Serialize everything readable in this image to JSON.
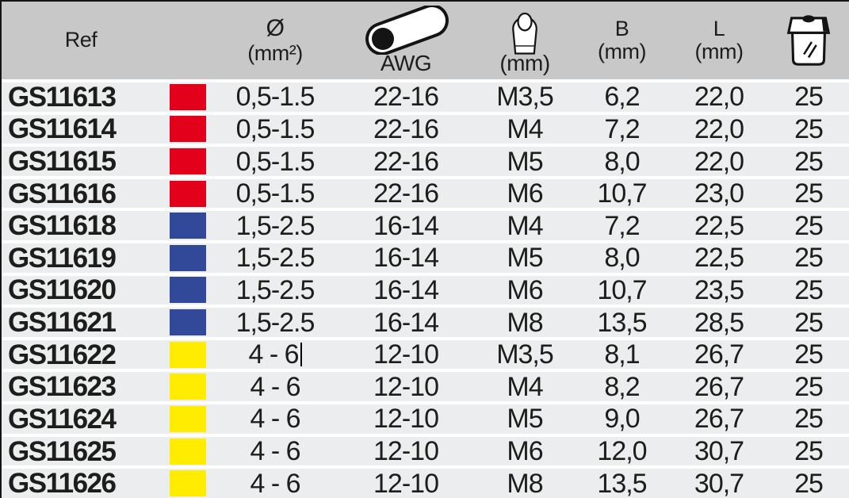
{
  "table": {
    "header": {
      "ref": "Ref",
      "diameter_symbol": "Ø",
      "diameter_unit": "(mm²)",
      "awg_label": "AWG",
      "ring_unit": "(mm)",
      "b_label": "B",
      "b_unit": "(mm)",
      "l_label": "L",
      "l_unit": "(mm)",
      "icons": {
        "awg": "cable-cross-section-icon",
        "ring": "ring-terminal-icon",
        "package": "packaging-box-icon"
      }
    },
    "rows": [
      {
        "ref": "GS11613",
        "color": "red",
        "diameter": "0,5-1.5",
        "awg": "22-16",
        "thread": "M3,5",
        "b": "6,2",
        "l": "22,0",
        "qty": "25"
      },
      {
        "ref": "GS11614",
        "color": "red",
        "diameter": "0,5-1.5",
        "awg": "22-16",
        "thread": "M4",
        "b": "7,2",
        "l": "22,0",
        "qty": "25"
      },
      {
        "ref": "GS11615",
        "color": "red",
        "diameter": "0,5-1.5",
        "awg": "22-16",
        "thread": "M5",
        "b": "8,0",
        "l": "22,0",
        "qty": "25"
      },
      {
        "ref": "GS11616",
        "color": "red",
        "diameter": "0,5-1.5",
        "awg": "22-16",
        "thread": "M6",
        "b": "10,7",
        "l": "23,0",
        "qty": "25"
      },
      {
        "ref": "GS11618",
        "color": "blue",
        "diameter": "1,5-2.5",
        "awg": "16-14",
        "thread": "M4",
        "b": "7,2",
        "l": "22,5",
        "qty": "25"
      },
      {
        "ref": "GS11619",
        "color": "blue",
        "diameter": "1,5-2.5",
        "awg": "16-14",
        "thread": "M5",
        "b": "8,0",
        "l": "22,5",
        "qty": "25"
      },
      {
        "ref": "GS11620",
        "color": "blue",
        "diameter": "1,5-2.5",
        "awg": "16-14",
        "thread": "M6",
        "b": "10,7",
        "l": "23,5",
        "qty": "25"
      },
      {
        "ref": "GS11621",
        "color": "blue",
        "diameter": "1,5-2.5",
        "awg": "16-14",
        "thread": "M8",
        "b": "13,5",
        "l": "28,5",
        "qty": "25"
      },
      {
        "ref": "GS11622",
        "color": "yellow",
        "diameter": "4 - 6",
        "awg": "12-10",
        "thread": "M3,5",
        "b": "8,1",
        "l": "26,7",
        "qty": "25",
        "caret": true
      },
      {
        "ref": "GS11623",
        "color": "yellow",
        "diameter": "4 - 6",
        "awg": "12-10",
        "thread": "M4",
        "b": "8,2",
        "l": "26,7",
        "qty": "25"
      },
      {
        "ref": "GS11624",
        "color": "yellow",
        "diameter": "4 - 6",
        "awg": "12-10",
        "thread": "M5",
        "b": "9,0",
        "l": "26,7",
        "qty": "25"
      },
      {
        "ref": "GS11625",
        "color": "yellow",
        "diameter": "4 - 6",
        "awg": "12-10",
        "thread": "M6",
        "b": "12,0",
        "l": "30,7",
        "qty": "25"
      },
      {
        "ref": "GS11626",
        "color": "yellow",
        "diameter": "4 - 6",
        "awg": "12-10",
        "thread": "M8",
        "b": "13,5",
        "l": "30,7",
        "qty": "25"
      }
    ]
  },
  "colors": {
    "red": "#e3001b",
    "blue": "#32499a",
    "yellow": "#ffec00",
    "header_bg": "#c7c8c7",
    "row_bg": "#ebedee"
  }
}
